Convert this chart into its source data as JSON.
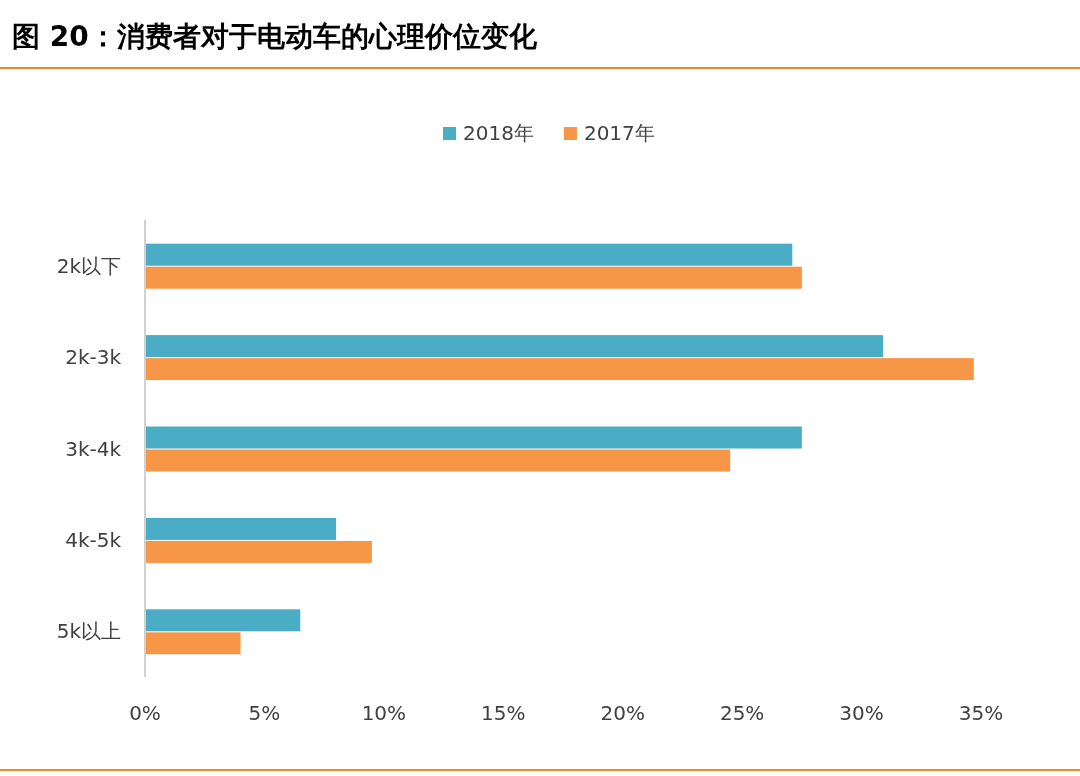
{
  "chart_data": {
    "type": "bar",
    "orientation": "horizontal",
    "title": "图 20：消费者对于电动车的心理价位变化",
    "categories": [
      "2k以下",
      "2k-3k",
      "3k-4k",
      "4k-5k",
      "5k以上"
    ],
    "series": [
      {
        "name": "2018年",
        "color": "#4bacc6",
        "values": [
          27.1,
          30.9,
          27.5,
          8.0,
          6.5
        ]
      },
      {
        "name": "2017年",
        "color": "#f79646",
        "values": [
          27.5,
          34.7,
          24.5,
          9.5,
          4.0
        ]
      }
    ],
    "xlim": [
      0,
      35
    ],
    "xticks": [
      {
        "value": 0,
        "label": "0%"
      },
      {
        "value": 5,
        "label": "5%"
      },
      {
        "value": 10,
        "label": "10%"
      },
      {
        "value": 15,
        "label": "15%"
      },
      {
        "value": 20,
        "label": "20%"
      },
      {
        "value": 25,
        "label": "25%"
      },
      {
        "value": 30,
        "label": "30%"
      },
      {
        "value": 35,
        "label": "35%"
      }
    ],
    "legend": "top"
  }
}
